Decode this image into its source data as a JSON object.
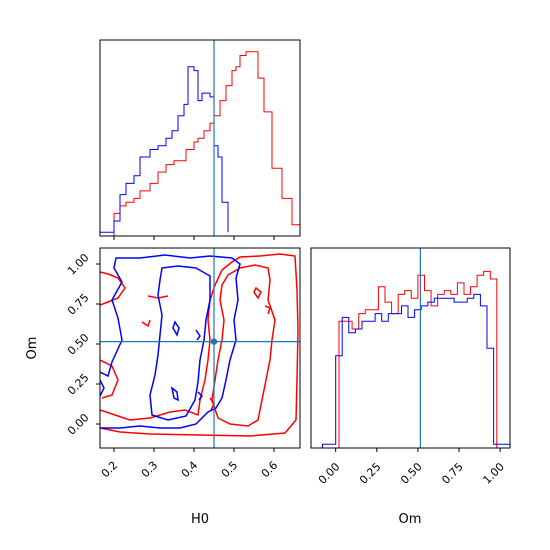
{
  "chart_data": {
    "type": "corner",
    "parameters": [
      "H0",
      "Om"
    ],
    "truth": {
      "H0": 0.45,
      "Om": 0.515
    },
    "colors": {
      "red": "#ff0000",
      "blue": "#0000ff",
      "truth": "#1f77b4",
      "axes": "#000000"
    },
    "panels": [
      {
        "id": "hist-H0",
        "type": "histogram-step",
        "xlim": [
          0.165,
          0.665
        ],
        "x_ticks": [
          0.2,
          0.3,
          0.4,
          0.5,
          0.6
        ],
        "x_tick_labels_shown": false,
        "y_ticks_shown": false,
        "truth_line": 0.45,
        "series": [
          {
            "color": "red",
            "bin_edges": [
              0.165,
              0.2,
              0.215,
              0.23,
              0.25,
              0.265,
              0.29,
              0.31,
              0.33,
              0.35,
              0.38,
              0.4,
              0.41,
              0.425,
              0.44,
              0.45,
              0.465,
              0.48,
              0.495,
              0.505,
              0.515,
              0.53,
              0.545,
              0.56,
              0.575,
              0.595,
              0.62,
              0.645,
              0.665
            ],
            "heights": [
              0.0,
              0.12,
              0.16,
              0.18,
              0.2,
              0.24,
              0.28,
              0.34,
              0.38,
              0.4,
              0.46,
              0.5,
              0.52,
              0.56,
              0.6,
              0.64,
              0.72,
              0.8,
              0.88,
              0.9,
              0.96,
              0.98,
              0.98,
              0.84,
              0.66,
              0.36,
              0.2,
              0.06
            ]
          },
          {
            "color": "blue",
            "bin_edges": [
              0.165,
              0.2,
              0.215,
              0.23,
              0.25,
              0.265,
              0.29,
              0.31,
              0.33,
              0.345,
              0.36,
              0.375,
              0.385,
              0.4,
              0.41,
              0.42,
              0.43,
              0.44,
              0.45,
              0.46,
              0.47,
              0.485
            ],
            "heights": [
              0.02,
              0.08,
              0.22,
              0.28,
              0.32,
              0.42,
              0.46,
              0.48,
              0.52,
              0.56,
              0.64,
              0.7,
              0.9,
              0.88,
              0.72,
              0.76,
              0.76,
              0.74,
              0.48,
              0.42,
              0.18,
              0.02
            ]
          }
        ]
      },
      {
        "id": "contour-H0-Om",
        "type": "contour",
        "xlim": [
          0.165,
          0.665
        ],
        "ylim": [
          -0.15,
          1.1
        ],
        "x_ticks": [
          0.2,
          0.3,
          0.4,
          0.5,
          0.6
        ],
        "y_ticks": [
          0.0,
          0.25,
          0.5,
          0.75,
          1.0
        ],
        "xlabel": "H0",
        "ylabel": "Om",
        "truth_point": [
          0.45,
          0.515
        ]
      },
      {
        "id": "hist-Om",
        "type": "histogram-step",
        "xlim": [
          -0.15,
          1.06
        ],
        "x_ticks": [
          0.0,
          0.25,
          0.5,
          0.75,
          1.0
        ],
        "xlabel": "Om",
        "y_ticks_shown": false,
        "truth_line": 0.515,
        "series": [
          {
            "color": "red",
            "bin_edges": [
              -0.15,
              -0.02,
              0.02,
              0.06,
              0.1,
              0.14,
              0.18,
              0.22,
              0.26,
              0.3,
              0.34,
              0.38,
              0.42,
              0.46,
              0.5,
              0.54,
              0.58,
              0.62,
              0.66,
              0.7,
              0.74,
              0.78,
              0.82,
              0.86,
              0.9,
              0.94,
              0.98,
              1.06
            ],
            "heights": [
              0.0,
              0.0,
              0.66,
              0.66,
              0.62,
              0.7,
              0.72,
              0.72,
              0.84,
              0.76,
              0.7,
              0.8,
              0.82,
              0.78,
              0.9,
              0.82,
              0.74,
              0.8,
              0.82,
              0.8,
              0.86,
              0.8,
              0.84,
              0.9,
              0.92,
              0.88,
              0.0
            ]
          },
          {
            "color": "blue",
            "bin_edges": [
              -0.15,
              -0.08,
              0.0,
              0.04,
              0.08,
              0.12,
              0.16,
              0.2,
              0.24,
              0.28,
              0.32,
              0.36,
              0.4,
              0.44,
              0.48,
              0.52,
              0.56,
              0.6,
              0.64,
              0.68,
              0.72,
              0.76,
              0.8,
              0.84,
              0.88,
              0.92,
              0.96,
              1.02,
              1.06
            ],
            "heights": [
              0.0,
              0.02,
              0.48,
              0.68,
              0.6,
              0.62,
              0.66,
              0.66,
              0.7,
              0.66,
              0.7,
              0.7,
              0.74,
              0.68,
              0.72,
              0.74,
              0.76,
              0.78,
              0.78,
              0.78,
              0.76,
              0.76,
              0.78,
              0.8,
              0.74,
              0.52,
              0.02,
              0.02
            ]
          }
        ]
      }
    ]
  }
}
